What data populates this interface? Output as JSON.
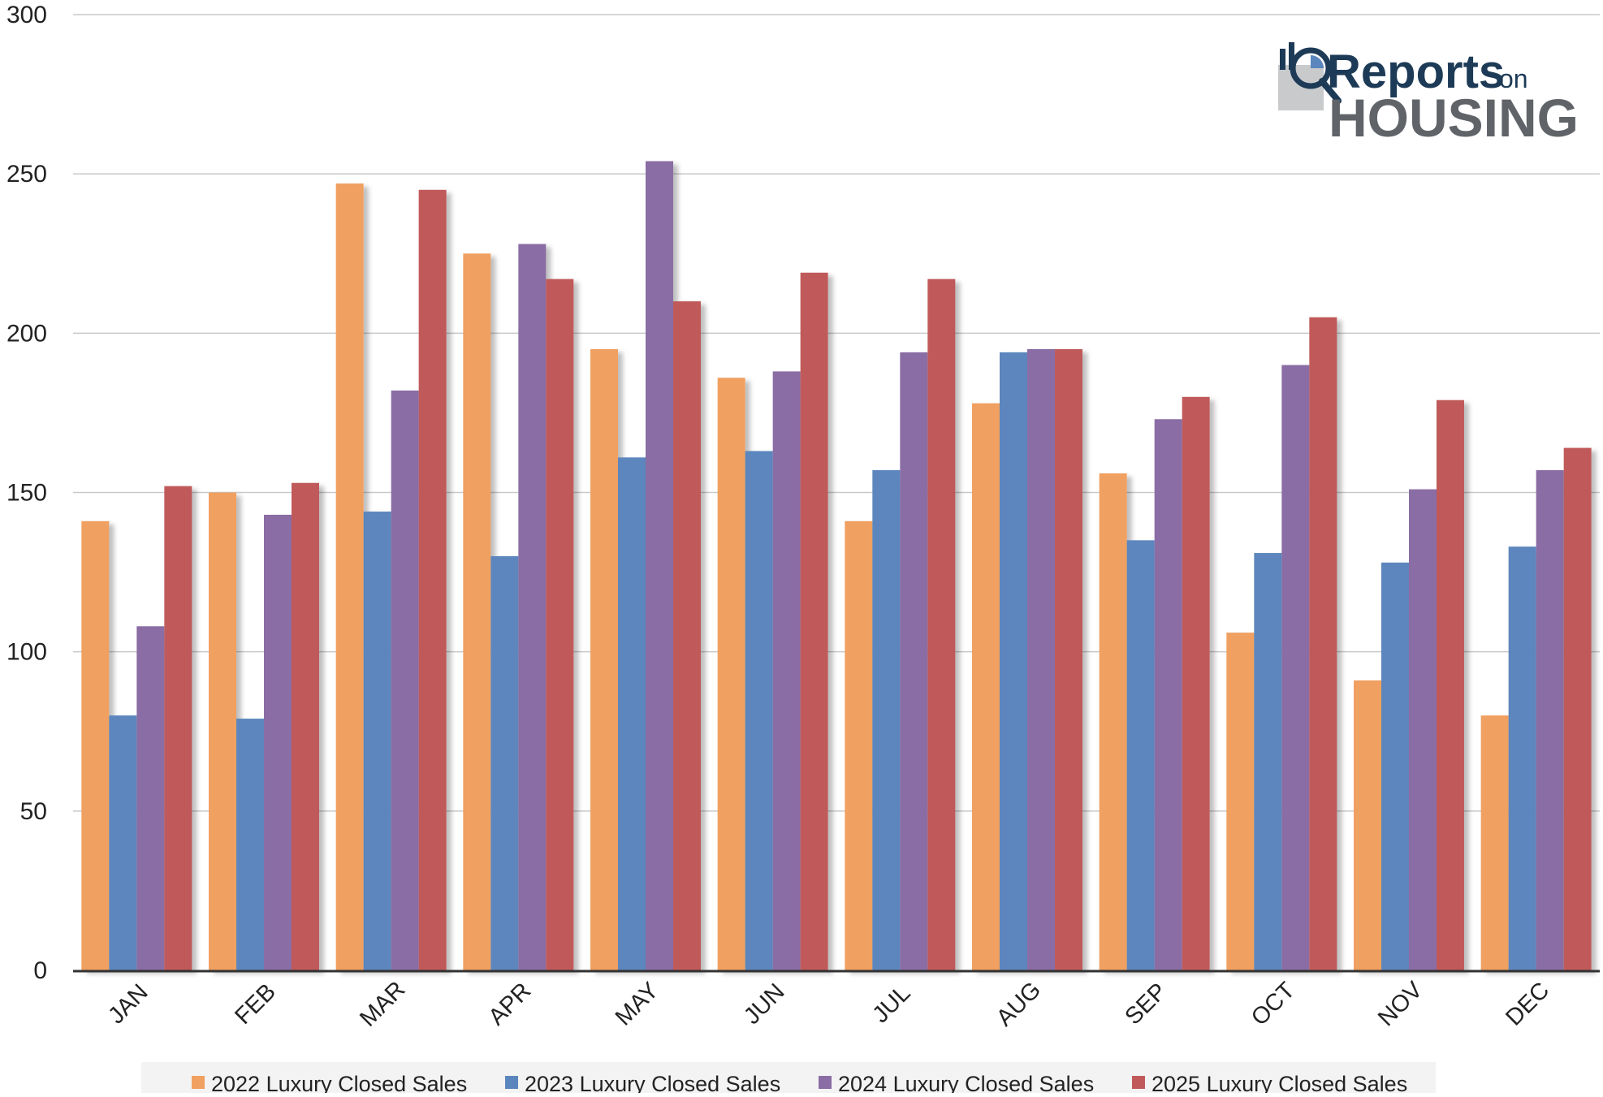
{
  "chart_data": {
    "type": "bar",
    "categories": [
      "JAN",
      "FEB",
      "MAR",
      "APR",
      "MAY",
      "JUN",
      "JUL",
      "AUG",
      "SEP",
      "OCT",
      "NOV",
      "DEC"
    ],
    "series": [
      {
        "name": "2022 Luxury Closed Sales",
        "color": "#f0a060",
        "values": [
          141,
          150,
          247,
          225,
          195,
          186,
          141,
          178,
          156,
          106,
          91,
          80
        ]
      },
      {
        "name": "2023 Luxury Closed Sales",
        "color": "#5b86bd",
        "values": [
          80,
          79,
          144,
          130,
          161,
          163,
          157,
          194,
          135,
          131,
          128,
          133
        ]
      },
      {
        "name": "2024 Luxury Closed Sales",
        "color": "#8a6da4",
        "values": [
          108,
          143,
          182,
          228,
          254,
          188,
          194,
          195,
          173,
          190,
          151,
          157
        ]
      },
      {
        "name": "2025 Luxury Closed Sales",
        "color": "#c05a5a",
        "values": [
          152,
          153,
          245,
          217,
          210,
          219,
          217,
          195,
          180,
          205,
          179,
          164
        ]
      }
    ],
    "ylim": [
      0,
      300
    ],
    "yticks": [
      0,
      50,
      100,
      150,
      200,
      250,
      300
    ],
    "grid": true,
    "legend": "bottom",
    "title": "",
    "xlabel": "",
    "ylabel": ""
  },
  "logo": {
    "reports": "Reports",
    "on": "on",
    "housing": "HOUSING"
  }
}
